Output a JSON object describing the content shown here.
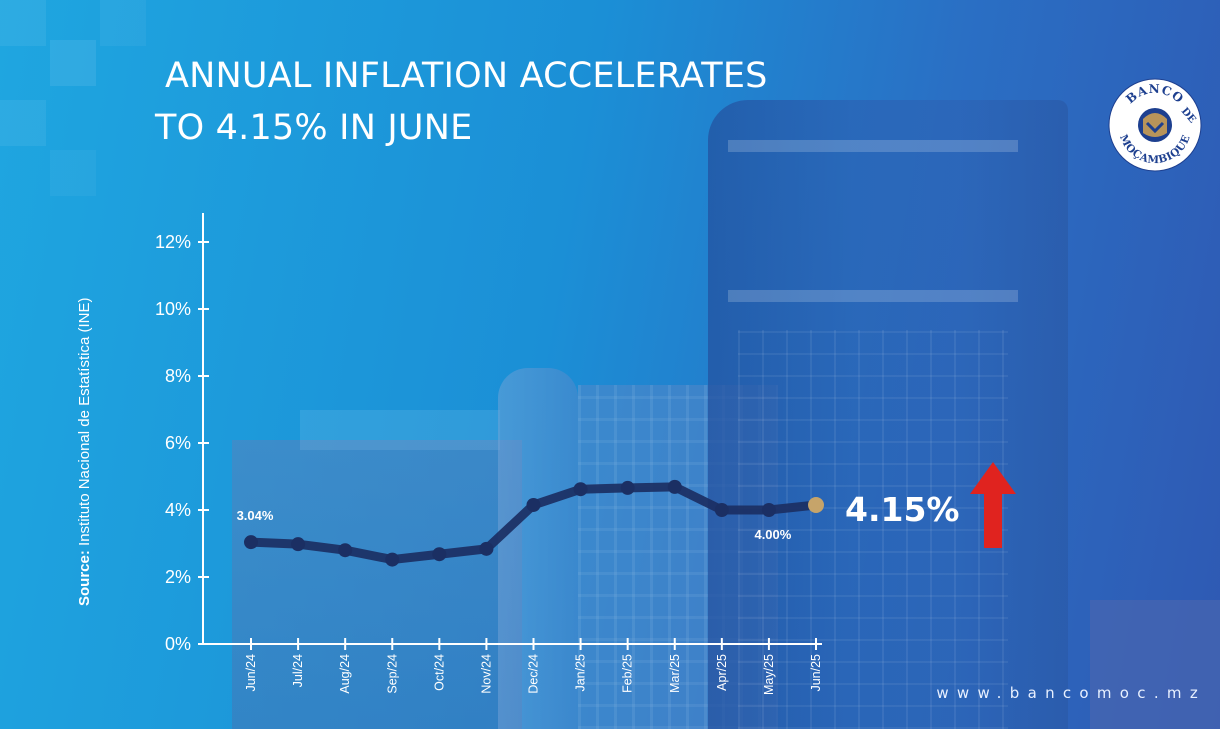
{
  "title": {
    "line1": "ANNUAL INFLATION ACCELERATES",
    "line2": "TO 4.15% IN JUNE"
  },
  "logo": {
    "text_top": "BANCO",
    "text_mid": "DE",
    "text_bottom": "MOÇAMBIQUE",
    "colors": {
      "ring": "#ffffff",
      "emblem": "#b8945a",
      "text": "#1d3f8f"
    }
  },
  "source": {
    "label": "Source:",
    "text": "Instituto Nacional de Estatística (INE)"
  },
  "callout": {
    "value": "4.15%",
    "direction": "up",
    "arrow_color": "#e0231f",
    "arrow_icon": "up-arrow-icon"
  },
  "website": "www.bancomoc.mz",
  "colors": {
    "line": "#1b2f63",
    "marker": "#1b2f63",
    "highlight_marker": "#c6a46a",
    "axis": "#ffffff"
  },
  "chart_data": {
    "type": "line",
    "title": "ANNUAL INFLATION ACCELERATES TO 4.15% IN JUNE",
    "xlabel": "",
    "ylabel": "",
    "categories": [
      "Jun/24",
      "Jul/24",
      "Aug/24",
      "Sep/24",
      "Oct/24",
      "Nov/24",
      "Dec/24",
      "Jan/25",
      "Feb/25",
      "Mar/25",
      "Apr/25",
      "May/25",
      "Jun/25"
    ],
    "values": [
      3.04,
      2.98,
      2.8,
      2.52,
      2.68,
      2.84,
      4.15,
      4.62,
      4.66,
      4.69,
      4.0,
      4.0,
      4.15
    ],
    "ylim": [
      0,
      13
    ],
    "yticks": [
      0,
      2,
      4,
      6,
      8,
      10,
      12
    ],
    "ytick_labels": [
      "0%",
      "2%",
      "4%",
      "6%",
      "8%",
      "10%",
      "12%"
    ],
    "data_labels": [
      {
        "index": 0,
        "text": "3.04%"
      },
      {
        "index": 11,
        "text": "4.00%"
      }
    ],
    "highlight_index": 12,
    "grid": false,
    "legend": "none"
  }
}
